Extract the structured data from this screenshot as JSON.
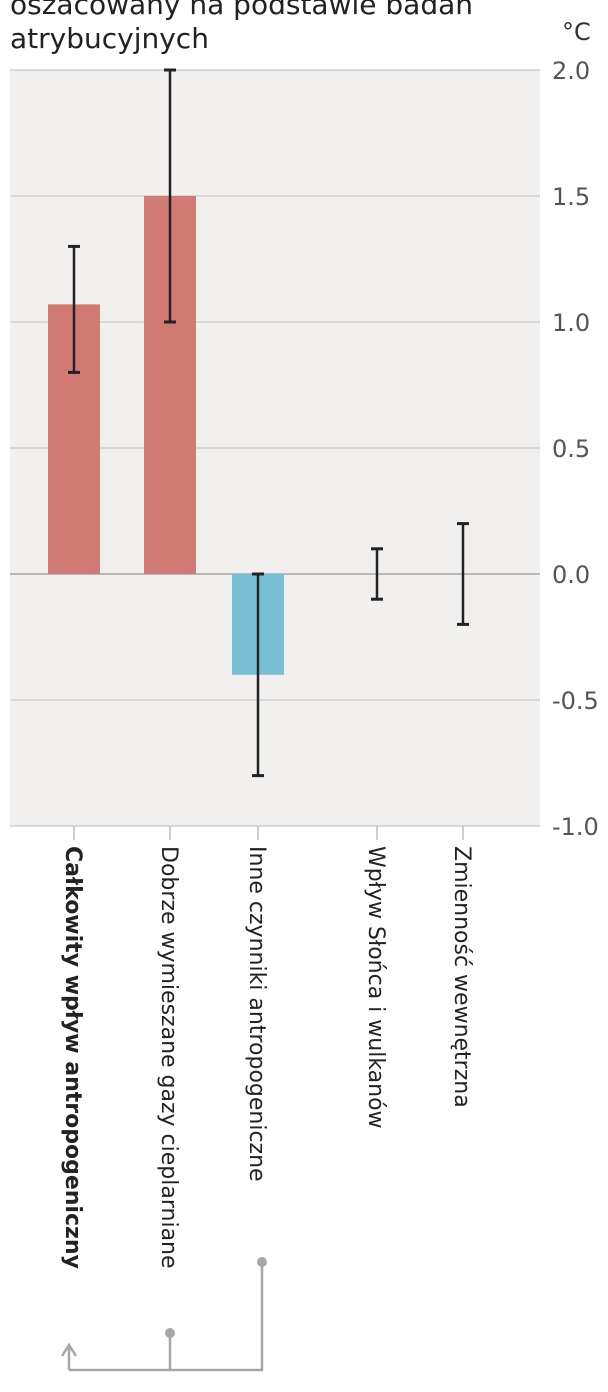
{
  "chart_data": {
    "type": "bar",
    "title_lines": [
      "oszacowany na podstawie badań",
      "atrybucyjnych"
    ],
    "unit": "°C",
    "ylim": [
      -1.0,
      2.0
    ],
    "yticks": [
      "2.0",
      "1.5",
      "1.0",
      "0.5",
      "0.0",
      "-0.5",
      "-1.0"
    ],
    "ytick_values": [
      2.0,
      1.5,
      1.0,
      0.5,
      0.0,
      -0.5,
      -1.0
    ],
    "grid": true,
    "categories": [
      "Całkowity wpływ antropogeniczny",
      "Dobrze wymieszane gazy cieplarniane",
      "Inne czynniki antropogeniczne",
      "Wpływ Słońca i wulkanów",
      "Zmienność wewnętrzna"
    ],
    "values": [
      1.07,
      1.5,
      -0.4,
      0.0,
      0.0
    ],
    "error_low": [
      0.8,
      1.0,
      -0.8,
      -0.1,
      -0.2
    ],
    "error_high": [
      1.3,
      2.0,
      0.0,
      0.1,
      0.2
    ],
    "colors": [
      "#d17a74",
      "#d17a74",
      "#79bfd4",
      "#d17a74",
      "#d17a74"
    ],
    "plot_background": "#f2f0ee",
    "bracket_color": "#a6a6a6"
  }
}
